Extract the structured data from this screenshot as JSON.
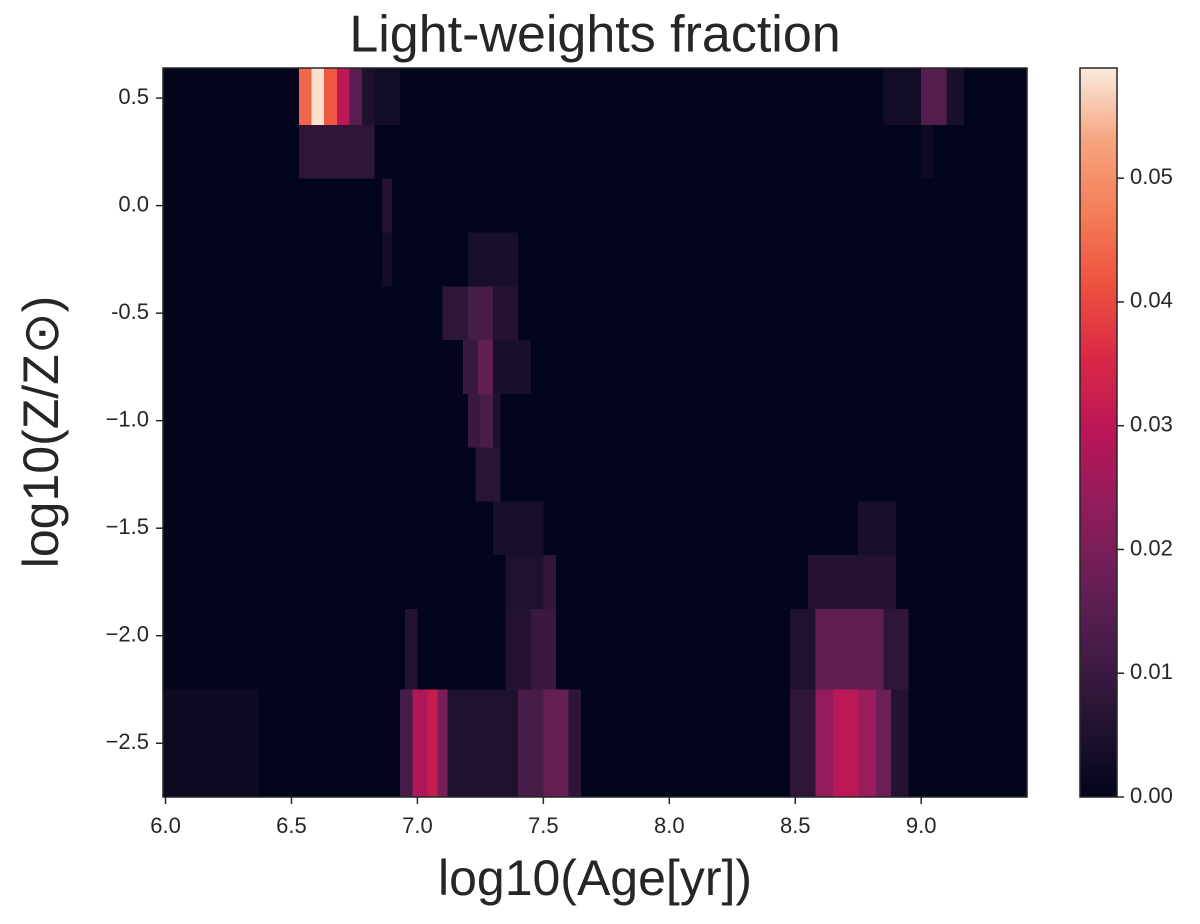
{
  "chart_data": {
    "type": "heatmap",
    "title": "Light-weights fraction",
    "xlabel": "log10(Age[yr])",
    "ylabel": "log10(Z/Z⊙)",
    "xlim": [
      5.99,
      9.42
    ],
    "ylim": [
      -2.75,
      0.64
    ],
    "xticks": [
      {
        "value": 6,
        "label": "6.0"
      },
      6.5,
      {
        "value": 7,
        "label": "7.0"
      },
      7.5,
      {
        "value": 8,
        "label": "8.0"
      },
      8.5,
      {
        "value": 9,
        "label": "9.0"
      }
    ],
    "yticks": [
      0.5,
      {
        "value": 0,
        "label": "0.0"
      },
      -0.5,
      {
        "value": -1,
        "label": "−1.0"
      },
      {
        "value": -1.5,
        "label": "−1.5"
      },
      {
        "value": -2,
        "label": "−2.0"
      },
      {
        "value": -2.5,
        "label": "−2.5"
      }
    ],
    "clim": [
      0,
      0.0589
    ],
    "cticks": [
      {
        "value": 0,
        "label": "0.00"
      },
      {
        "value": 0.01,
        "label": "0.01"
      },
      {
        "value": 0.02,
        "label": "0.02"
      },
      {
        "value": 0.03,
        "label": "0.03"
      },
      {
        "value": 0.04,
        "label": "0.04"
      },
      {
        "value": 0.05,
        "label": "0.05"
      }
    ],
    "colormap": [
      "#03051a",
      "#221331",
      "#451c47",
      "#6a1f56",
      "#921c5b",
      "#b91657",
      "#d92847",
      "#ed513e",
      "#f47d57",
      "#f6a47f",
      "#faebdd"
    ],
    "cells": [
      {
        "x": [
          6.53,
          6.58
        ],
        "y": [
          0.375,
          0.64
        ],
        "value": 0.044
      },
      {
        "x": [
          6.58,
          6.63
        ],
        "y": [
          0.375,
          0.64
        ],
        "value": 0.058
      },
      {
        "x": [
          6.63,
          6.68
        ],
        "y": [
          0.375,
          0.64
        ],
        "value": 0.042
      },
      {
        "x": [
          6.68,
          6.73
        ],
        "y": [
          0.375,
          0.64
        ],
        "value": 0.03
      },
      {
        "x": [
          6.73,
          6.78
        ],
        "y": [
          0.375,
          0.64
        ],
        "value": 0.015
      },
      {
        "x": [
          6.78,
          6.83
        ],
        "y": [
          0.375,
          0.64
        ],
        "value": 0.005
      },
      {
        "x": [
          6.83,
          6.93
        ],
        "y": [
          0.375,
          0.64
        ],
        "value": 0.003
      },
      {
        "x": [
          8.85,
          9.0
        ],
        "y": [
          0.375,
          0.64
        ],
        "value": 0.003
      },
      {
        "x": [
          9.0,
          9.1
        ],
        "y": [
          0.375,
          0.64
        ],
        "value": 0.014
      },
      {
        "x": [
          9.1,
          9.17
        ],
        "y": [
          0.375,
          0.64
        ],
        "value": 0.004
      },
      {
        "x": [
          6.53,
          6.83
        ],
        "y": [
          0.125,
          0.375
        ],
        "value": 0.008
      },
      {
        "x": [
          9.0,
          9.05
        ],
        "y": [
          0.125,
          0.375
        ],
        "value": 0.002
      },
      {
        "x": [
          6.86,
          6.9
        ],
        "y": [
          -0.125,
          0.125
        ],
        "value": 0.006
      },
      {
        "x": [
          6.86,
          6.9
        ],
        "y": [
          -0.375,
          -0.125
        ],
        "value": 0.003
      },
      {
        "x": [
          7.2,
          7.4
        ],
        "y": [
          -0.375,
          -0.125
        ],
        "value": 0.004
      },
      {
        "x": [
          7.1,
          7.2
        ],
        "y": [
          -0.625,
          -0.375
        ],
        "value": 0.008
      },
      {
        "x": [
          7.2,
          7.3
        ],
        "y": [
          -0.625,
          -0.375
        ],
        "value": 0.012
      },
      {
        "x": [
          7.3,
          7.4
        ],
        "y": [
          -0.625,
          -0.375
        ],
        "value": 0.006
      },
      {
        "x": [
          7.18,
          7.24
        ],
        "y": [
          -0.875,
          -0.625
        ],
        "value": 0.01
      },
      {
        "x": [
          7.24,
          7.3
        ],
        "y": [
          -0.875,
          -0.625
        ],
        "value": 0.016
      },
      {
        "x": [
          7.3,
          7.45
        ],
        "y": [
          -0.875,
          -0.625
        ],
        "value": 0.004
      },
      {
        "x": [
          7.2,
          7.25
        ],
        "y": [
          -1.125,
          -0.875
        ],
        "value": 0.01
      },
      {
        "x": [
          7.25,
          7.3
        ],
        "y": [
          -1.125,
          -0.875
        ],
        "value": 0.013
      },
      {
        "x": [
          7.3,
          7.33
        ],
        "y": [
          -1.125,
          -0.875
        ],
        "value": 0.005
      },
      {
        "x": [
          7.23,
          7.33
        ],
        "y": [
          -1.375,
          -1.125
        ],
        "value": 0.007
      },
      {
        "x": [
          7.3,
          7.5
        ],
        "y": [
          -1.625,
          -1.375
        ],
        "value": 0.004
      },
      {
        "x": [
          8.75,
          8.9
        ],
        "y": [
          -1.625,
          -1.375
        ],
        "value": 0.004
      },
      {
        "x": [
          7.35,
          7.5
        ],
        "y": [
          -1.875,
          -1.625
        ],
        "value": 0.005
      },
      {
        "x": [
          7.5,
          7.55
        ],
        "y": [
          -1.875,
          -1.625
        ],
        "value": 0.008
      },
      {
        "x": [
          8.55,
          8.9
        ],
        "y": [
          -1.875,
          -1.625
        ],
        "value": 0.006
      },
      {
        "x": [
          6.95,
          7.0
        ],
        "y": [
          -2.25,
          -1.875
        ],
        "value": 0.006
      },
      {
        "x": [
          7.35,
          7.45
        ],
        "y": [
          -2.25,
          -1.875
        ],
        "value": 0.006
      },
      {
        "x": [
          7.45,
          7.55
        ],
        "y": [
          -2.25,
          -1.875
        ],
        "value": 0.01
      },
      {
        "x": [
          8.48,
          8.58
        ],
        "y": [
          -2.25,
          -1.875
        ],
        "value": 0.005
      },
      {
        "x": [
          8.58,
          8.85
        ],
        "y": [
          -2.25,
          -1.875
        ],
        "value": 0.016
      },
      {
        "x": [
          8.85,
          8.95
        ],
        "y": [
          -2.25,
          -1.875
        ],
        "value": 0.008
      },
      {
        "x": [
          5.99,
          6.37
        ],
        "y": [
          -2.75,
          -2.25
        ],
        "value": 0.002
      },
      {
        "x": [
          6.93,
          6.98
        ],
        "y": [
          -2.75,
          -2.25
        ],
        "value": 0.012
      },
      {
        "x": [
          6.98,
          7.04
        ],
        "y": [
          -2.75,
          -2.25
        ],
        "value": 0.028
      },
      {
        "x": [
          7.04,
          7.08
        ],
        "y": [
          -2.75,
          -2.25
        ],
        "value": 0.032
      },
      {
        "x": [
          7.08,
          7.12
        ],
        "y": [
          -2.75,
          -2.25
        ],
        "value": 0.02
      },
      {
        "x": [
          7.12,
          7.4
        ],
        "y": [
          -2.75,
          -2.25
        ],
        "value": 0.005
      },
      {
        "x": [
          7.4,
          7.5
        ],
        "y": [
          -2.75,
          -2.25
        ],
        "value": 0.012
      },
      {
        "x": [
          7.5,
          7.6
        ],
        "y": [
          -2.75,
          -2.25
        ],
        "value": 0.017
      },
      {
        "x": [
          7.6,
          7.65
        ],
        "y": [
          -2.75,
          -2.25
        ],
        "value": 0.008
      },
      {
        "x": [
          8.48,
          8.58
        ],
        "y": [
          -2.75,
          -2.25
        ],
        "value": 0.008
      },
      {
        "x": [
          8.58,
          8.65
        ],
        "y": [
          -2.75,
          -2.25
        ],
        "value": 0.024
      },
      {
        "x": [
          8.65,
          8.75
        ],
        "y": [
          -2.75,
          -2.25
        ],
        "value": 0.03
      },
      {
        "x": [
          8.75,
          8.82
        ],
        "y": [
          -2.75,
          -2.25
        ],
        "value": 0.025
      },
      {
        "x": [
          8.82,
          8.88
        ],
        "y": [
          -2.75,
          -2.25
        ],
        "value": 0.018
      },
      {
        "x": [
          8.88,
          8.95
        ],
        "y": [
          -2.75,
          -2.25
        ],
        "value": 0.006
      }
    ]
  }
}
